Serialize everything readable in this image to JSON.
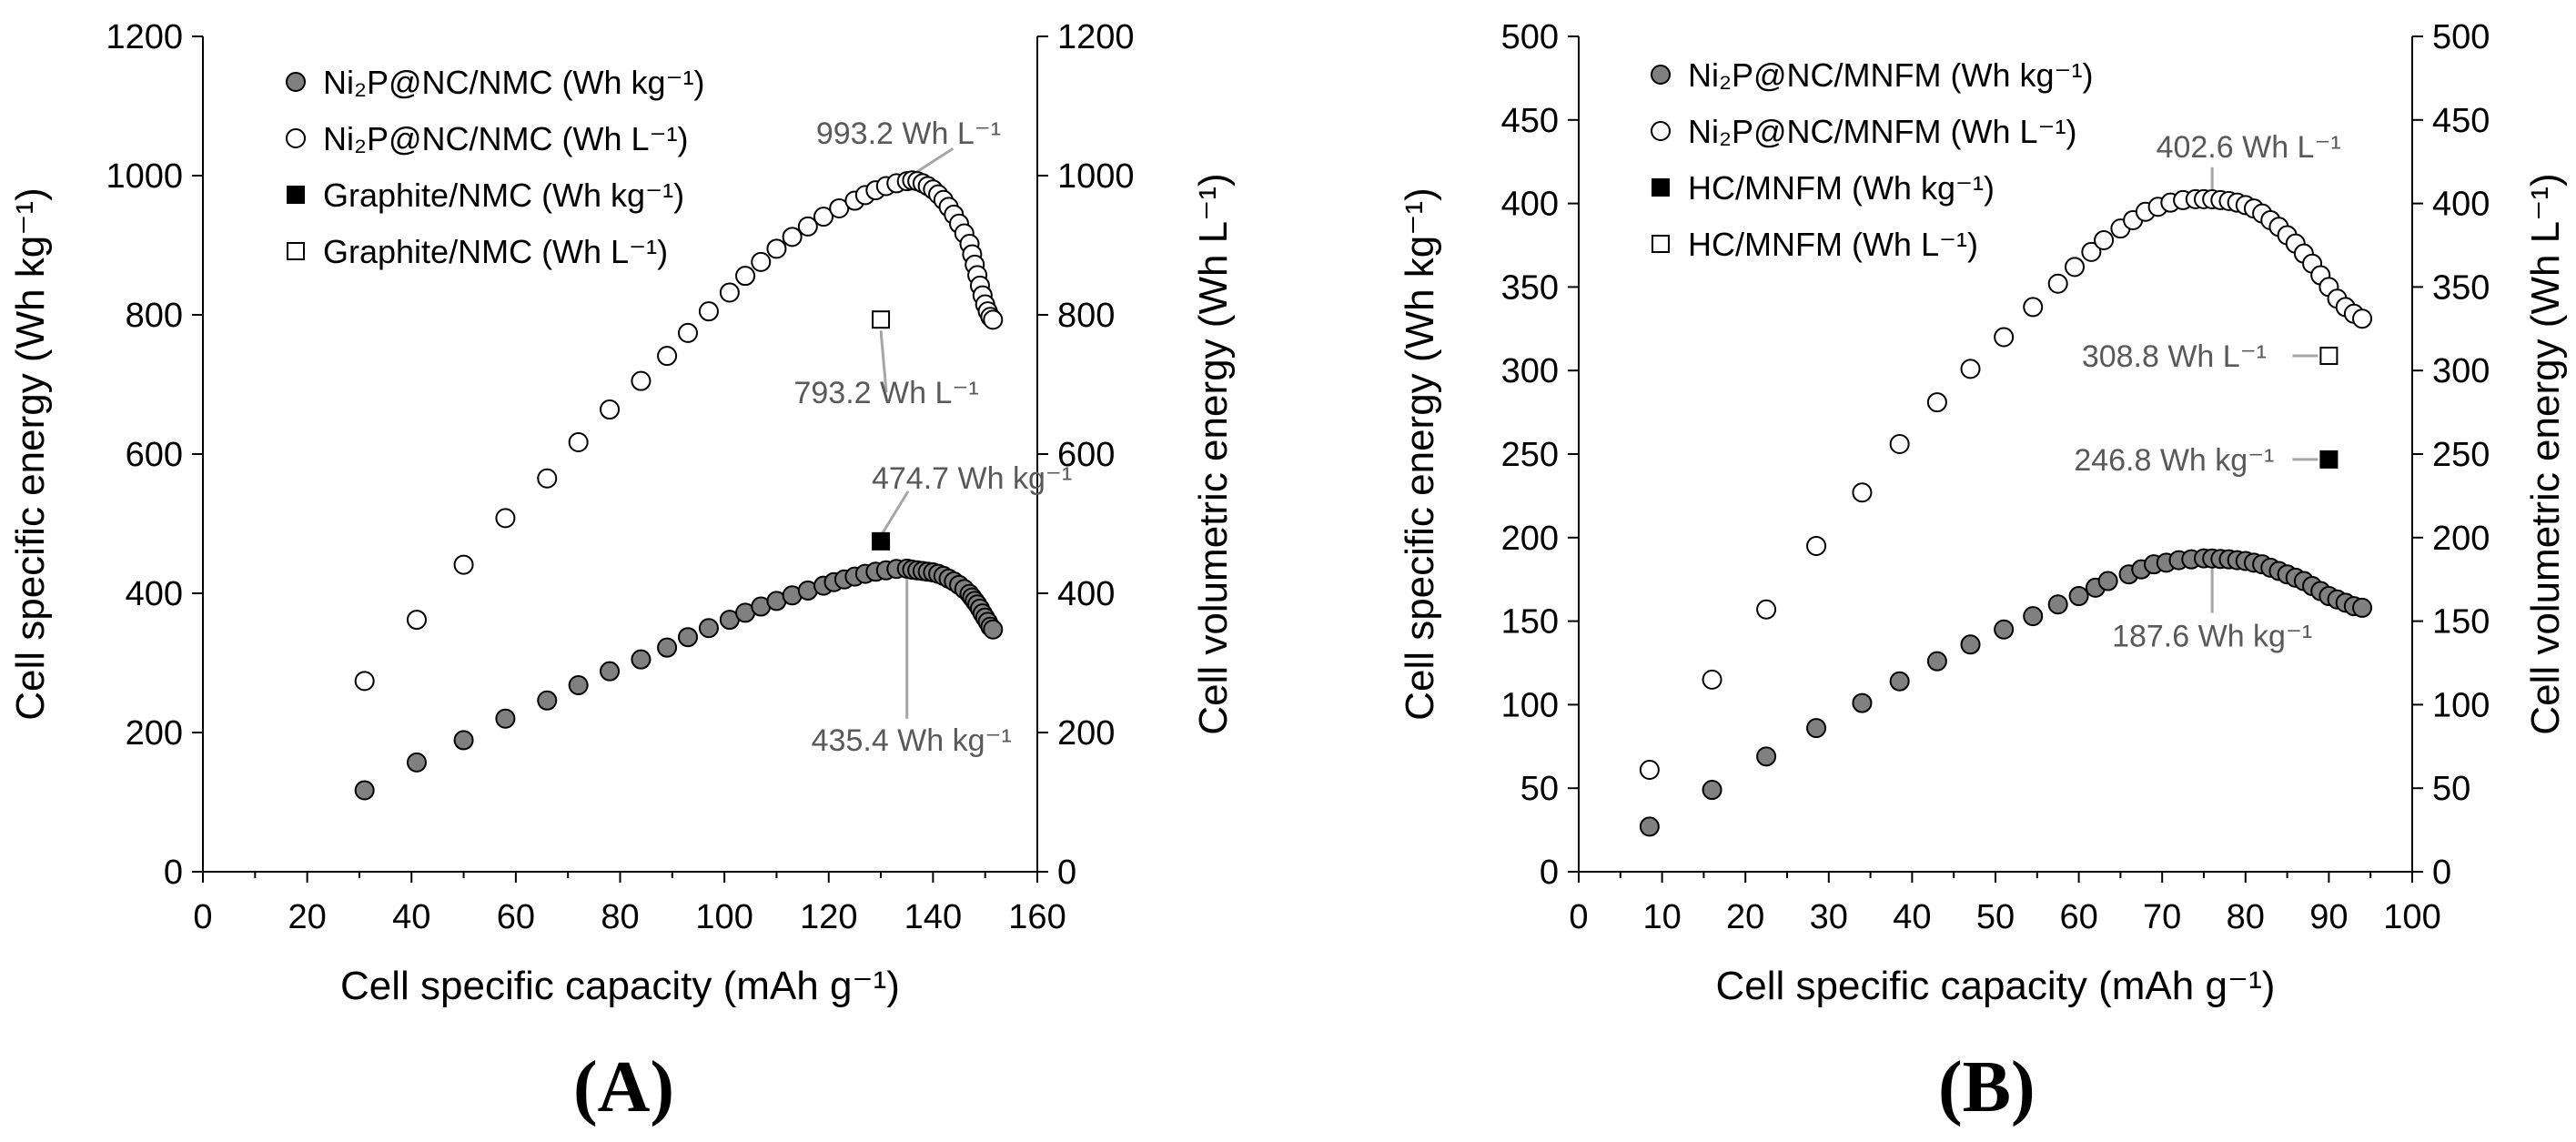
{
  "chart_data": [
    {
      "type": "scatter",
      "panel": "(A)",
      "xlabel": "Cell specific capacity (mAh g⁻¹)",
      "ylabel": "Cell specific energy (Wh kg⁻¹)",
      "y2label": "Cell volumetric energy (Wh L⁻¹)",
      "xlim": [
        0,
        160
      ],
      "ylim": [
        0,
        1200
      ],
      "y2lim": [
        0,
        1200
      ],
      "xticks": [
        0,
        20,
        40,
        60,
        80,
        100,
        120,
        140,
        160
      ],
      "yticks": [
        0,
        200,
        400,
        600,
        800,
        1000,
        1200
      ],
      "y2ticks": [
        0,
        200,
        400,
        600,
        800,
        1000,
        1200
      ],
      "legend_position": "top-left",
      "series": [
        {
          "name": "Ni₂P@NC/NMC (Wh kg⁻¹)",
          "marker": "circle-filled",
          "axis": "left",
          "x": [
            31,
            41,
            50,
            58,
            66,
            72,
            78,
            84,
            89,
            93,
            97,
            101,
            104,
            107,
            110,
            113,
            116,
            119,
            121,
            123,
            125,
            127,
            129,
            131,
            133,
            135,
            136,
            137,
            138,
            139,
            140,
            141,
            142,
            143,
            144,
            145,
            146,
            147,
            147.5,
            148,
            148.5,
            149,
            149.5,
            150,
            150.5,
            151,
            151.5
          ],
          "y": [
            117,
            157,
            189,
            220,
            246,
            268,
            288,
            305,
            322,
            337,
            350,
            362,
            372,
            381,
            389,
            397,
            404,
            411,
            416,
            420,
            424,
            428,
            431,
            433,
            435,
            435.4,
            434,
            433,
            432,
            431,
            430,
            428,
            425,
            421,
            417,
            412,
            406,
            399,
            394,
            389,
            384,
            378,
            371,
            365,
            359,
            352,
            348
          ]
        },
        {
          "name": "Ni₂P@NC/NMC (Wh L⁻¹)",
          "marker": "circle-open",
          "axis": "right",
          "x": [
            31,
            41,
            50,
            58,
            66,
            72,
            78,
            84,
            89,
            93,
            97,
            101,
            104,
            107,
            110,
            113,
            116,
            119,
            122,
            125,
            127,
            129,
            131,
            133,
            135,
            136,
            137,
            138,
            139,
            140,
            141,
            142,
            143,
            144,
            145,
            146,
            147,
            147.5,
            148,
            148.5,
            149,
            149.5,
            150,
            150.5,
            151,
            151.5
          ],
          "y": [
            274,
            362,
            441,
            508,
            565,
            617,
            664,
            705,
            741,
            774,
            805,
            832,
            856,
            876,
            895,
            912,
            927,
            941,
            953,
            964,
            972,
            979,
            985,
            989,
            992,
            993.2,
            992,
            989,
            985,
            980,
            973,
            965,
            955,
            944,
            931,
            917,
            902,
            887,
            872,
            857,
            842,
            828,
            815,
            805,
            797,
            793
          ]
        },
        {
          "name": "Graphite/NMC (Wh kg⁻¹)",
          "marker": "square-filled",
          "axis": "left",
          "x": [
            130
          ],
          "y": [
            474.7
          ]
        },
        {
          "name": "Graphite/NMC (Wh L⁻¹)",
          "marker": "square-open",
          "axis": "right",
          "x": [
            130
          ],
          "y": [
            793.2
          ]
        }
      ],
      "annotations": [
        {
          "text": "993.2 Wh L⁻¹",
          "x": 136,
          "y": 993.2,
          "axis": "right"
        },
        {
          "text": "793.2 Wh L⁻¹",
          "x": 130,
          "y": 793.2,
          "axis": "right"
        },
        {
          "text": "474.7 Wh kg⁻¹",
          "x": 130,
          "y": 474.7,
          "axis": "left"
        },
        {
          "text": "435.4 Wh kg⁻¹",
          "x": 135,
          "y": 435.4,
          "axis": "left"
        }
      ]
    },
    {
      "type": "scatter",
      "panel": "(B)",
      "xlabel": "Cell specific capacity (mAh g⁻¹)",
      "ylabel": "Cell specific energy (Wh kg⁻¹)",
      "y2label": "Cell volumetric energy (Wh L⁻¹)",
      "xlim": [
        0,
        100
      ],
      "ylim": [
        0,
        500
      ],
      "y2lim": [
        0,
        500
      ],
      "xticks": [
        0,
        10,
        20,
        30,
        40,
        50,
        60,
        70,
        80,
        90,
        100
      ],
      "yticks": [
        0,
        50,
        100,
        150,
        200,
        250,
        300,
        350,
        400,
        450,
        500
      ],
      "y2ticks": [
        0,
        50,
        100,
        150,
        200,
        250,
        300,
        350,
        400,
        450,
        500
      ],
      "legend_position": "top-left",
      "series": [
        {
          "name": "Ni₂P@NC/MNFM (Wh kg⁻¹)",
          "marker": "circle-filled",
          "axis": "left",
          "x": [
            8.5,
            16,
            22.5,
            28.5,
            34,
            38.5,
            43,
            47,
            51,
            54.5,
            57.5,
            60,
            62,
            63.5,
            66,
            67.5,
            69,
            70.5,
            72,
            73.5,
            75,
            76,
            77,
            78,
            79,
            80,
            81,
            82,
            83,
            84,
            85,
            86,
            87,
            88,
            89,
            90,
            91,
            92,
            93,
            94
          ],
          "y": [
            27,
            49,
            69,
            86,
            101,
            114,
            126,
            136,
            145,
            153,
            160,
            165,
            170,
            174,
            178,
            181,
            184,
            185,
            186.5,
            187,
            187.6,
            187.5,
            187.2,
            187,
            186.5,
            186,
            185,
            184,
            182,
            180,
            178,
            176,
            174,
            171,
            168,
            165,
            163,
            161,
            159,
            158
          ]
        },
        {
          "name": "Ni₂P@NC/MNFM (Wh L⁻¹)",
          "marker": "circle-open",
          "axis": "right",
          "x": [
            8.5,
            16,
            22.5,
            28.5,
            34,
            38.5,
            43,
            47,
            51,
            54.5,
            57.5,
            59.5,
            61.5,
            63,
            65,
            66.5,
            68,
            69.5,
            71,
            72.5,
            74,
            75,
            76,
            77,
            78,
            79,
            80,
            81,
            82,
            83,
            84,
            85,
            86,
            87,
            88,
            89,
            90,
            91,
            92,
            93,
            94
          ],
          "y": [
            61,
            115,
            157,
            195,
            227,
            256,
            281,
            301,
            320,
            338,
            352,
            362,
            371,
            378,
            385,
            390,
            395,
            398,
            400.5,
            402,
            402.6,
            402.6,
            402.5,
            402,
            401.5,
            400.5,
            399,
            397,
            394,
            390,
            386,
            381,
            376,
            370,
            364,
            357,
            350,
            343,
            338,
            334,
            331
          ]
        },
        {
          "name": "HC/MNFM (Wh kg⁻¹)",
          "marker": "square-filled",
          "axis": "left",
          "x": [
            90
          ],
          "y": [
            246.8
          ]
        },
        {
          "name": "HC/MNFM (Wh L⁻¹)",
          "marker": "square-open",
          "axis": "right",
          "x": [
            90
          ],
          "y": [
            308.8
          ]
        }
      ],
      "annotations": [
        {
          "text": "402.6 Wh L⁻¹",
          "x": 76,
          "y": 402.6,
          "axis": "right"
        },
        {
          "text": "308.8 Wh L⁻¹",
          "x": 90,
          "y": 308.8,
          "axis": "right"
        },
        {
          "text": "246.8 Wh kg⁻¹",
          "x": 90,
          "y": 246.8,
          "axis": "left"
        },
        {
          "text": "187.6 Wh kg⁻¹",
          "x": 76,
          "y": 187.6,
          "axis": "left"
        }
      ]
    }
  ],
  "colors": {
    "filled": "#808080",
    "stroke": "#000000",
    "open": "#ffffff",
    "square_filled": "#000000",
    "leader": "#a6a6a6",
    "annotation_text": "#595959"
  }
}
